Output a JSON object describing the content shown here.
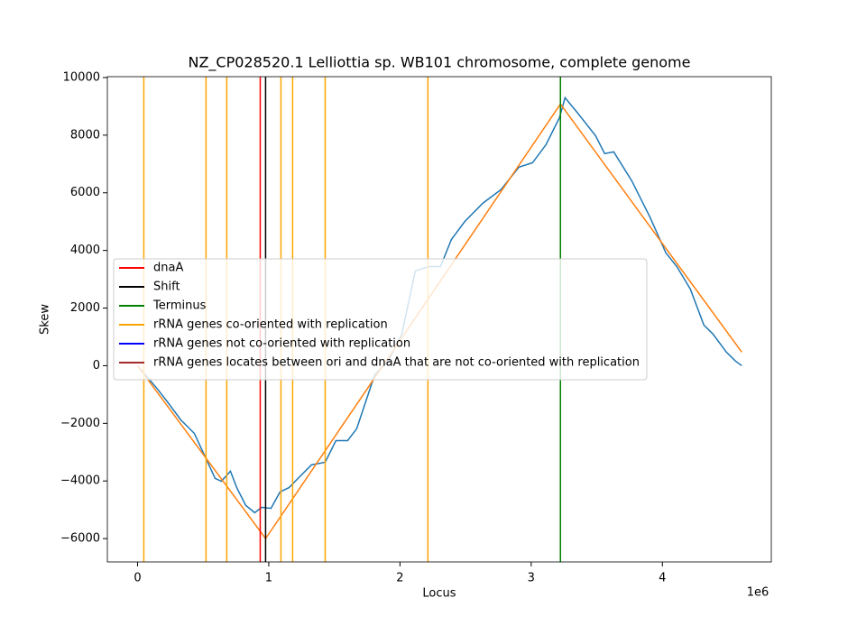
{
  "chart_data": {
    "type": "line",
    "title": "NZ_CP028520.1 Lelliottia sp. WB101 chromosome, complete genome",
    "xlabel": "Locus",
    "ylabel": "Skew",
    "x_offset_label": "1e6",
    "xlim": [
      -230000,
      4830000
    ],
    "ylim": [
      -6810,
      10030
    ],
    "xticks": [
      0,
      {
        "value": 1000000,
        "label": "1"
      },
      {
        "value": 2000000,
        "label": "2"
      },
      {
        "value": 3000000,
        "label": "3"
      },
      {
        "value": 4000000,
        "label": "4"
      }
    ],
    "yticks": [
      {
        "value": -6000,
        "label": "−6000"
      },
      {
        "value": -4000,
        "label": "−4000"
      },
      {
        "value": -2000,
        "label": "−2000"
      },
      0,
      2000,
      4000,
      6000,
      8000,
      10000
    ],
    "legend_loc": "center left",
    "series": [
      {
        "color": "#1f77b4",
        "x": [
          0,
          89000,
          158000,
          227000,
          330000,
          433000,
          522000,
          591000,
          639000,
          708000,
          756000,
          825000,
          893000,
          948000,
          1017000,
          1086000,
          1155000,
          1223000,
          1326000,
          1430000,
          1512000,
          1601000,
          1670000,
          1739000,
          1808000,
          1911000,
          2014000,
          2117000,
          2220000,
          2309000,
          2392000,
          2495000,
          2632000,
          2770000,
          2907000,
          3010000,
          3113000,
          3216000,
          3258000,
          3354000,
          3491000,
          3560000,
          3629000,
          3766000,
          3904000,
          4027000,
          4110000,
          4213000,
          4316000,
          4385000,
          4488000,
          4557000,
          4605000
        ],
        "values": [
          0,
          -470,
          -845,
          -1250,
          -1880,
          -2350,
          -3225,
          -3910,
          -4010,
          -3660,
          -4230,
          -4850,
          -5100,
          -4915,
          -4950,
          -4380,
          -4230,
          -3910,
          -3440,
          -3350,
          -2600,
          -2600,
          -2190,
          -1250,
          -310,
          160,
          1100,
          3290,
          3440,
          3440,
          4380,
          5010,
          5640,
          6110,
          6890,
          7040,
          7670,
          8610,
          9300,
          8770,
          7980,
          7360,
          7420,
          6420,
          5170,
          3910,
          3440,
          2660,
          1410,
          1100,
          470,
          160,
          0
        ]
      },
      {
        "color": "#ff7f0e",
        "x": [
          0,
          976000,
          3223000,
          4605000
        ],
        "values": [
          0,
          -6000,
          9080,
          470
        ]
      }
    ],
    "vlines": [
      {
        "name": "dnaA",
        "color": "#ff0000",
        "x": [
          935000
        ]
      },
      {
        "name": "Shift",
        "color": "#000000",
        "x": [
          976000
        ]
      },
      {
        "name": "Terminus",
        "color": "#008000",
        "x": [
          3223000
        ]
      },
      {
        "name": "rRNA genes co-oriented with replication",
        "color": "#ffa500",
        "x": [
          48000,
          522000,
          680000,
          1093000,
          1182000,
          1430000,
          2213000
        ]
      },
      {
        "name": "rRNA genes not co-oriented with replication",
        "color": "#0000ff",
        "x": []
      },
      {
        "name": "rRNA genes locates between ori and dnaA that are not co-oriented with replication",
        "color": "#a52a2a",
        "x": []
      }
    ]
  }
}
